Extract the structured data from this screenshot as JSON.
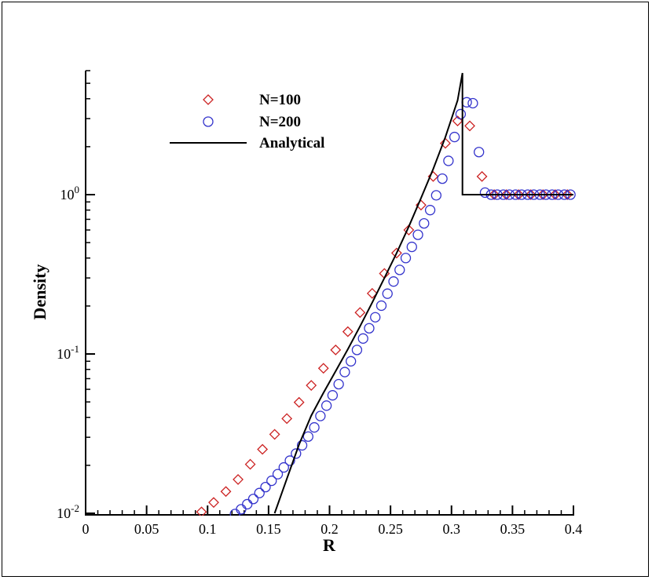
{
  "chart_data": {
    "type": "scatter",
    "xlabel": "R",
    "ylabel": "Density",
    "xlim": [
      0,
      0.4
    ],
    "ylim": [
      0.01,
      6
    ],
    "yscale": "log",
    "x_ticks": [
      "0",
      "0.05",
      "0.1",
      "0.15",
      "0.2",
      "0.25",
      "0.3",
      "0.35",
      "0.4"
    ],
    "y_ticks": [
      {
        "base": "10",
        "exp": "-2",
        "value": 0.01
      },
      {
        "base": "10",
        "exp": "-1",
        "value": 0.1
      },
      {
        "base": "10",
        "exp": "0",
        "value": 1
      }
    ],
    "grid": false,
    "legend_position": "top-left",
    "series": [
      {
        "name": "N=100",
        "marker": "diamond",
        "color": "#cc2222",
        "x": [
          0.095,
          0.105,
          0.115,
          0.125,
          0.135,
          0.145,
          0.155,
          0.165,
          0.175,
          0.185,
          0.195,
          0.205,
          0.215,
          0.225,
          0.235,
          0.245,
          0.255,
          0.265,
          0.275,
          0.285,
          0.295,
          0.305,
          0.315,
          0.325,
          0.335,
          0.345,
          0.355,
          0.365,
          0.375,
          0.385,
          0.395
        ],
        "y": [
          0.0102,
          0.0117,
          0.0137,
          0.0163,
          0.0203,
          0.0252,
          0.0313,
          0.0393,
          0.0497,
          0.0635,
          0.0813,
          0.106,
          0.138,
          0.182,
          0.24,
          0.32,
          0.43,
          0.6,
          0.86,
          1.3,
          2.1,
          2.9,
          2.7,
          1.3,
          1.0,
          1.0,
          1.0,
          1.0,
          1.0,
          1.0,
          1.0
        ]
      },
      {
        "name": "N=200",
        "marker": "circle",
        "color": "#3333cc",
        "x": [
          0.1225,
          0.1275,
          0.1325,
          0.1375,
          0.1425,
          0.1475,
          0.1525,
          0.1575,
          0.1625,
          0.1675,
          0.1725,
          0.1775,
          0.1825,
          0.1875,
          0.1925,
          0.1975,
          0.2025,
          0.2075,
          0.2125,
          0.2175,
          0.2225,
          0.2275,
          0.2325,
          0.2375,
          0.2425,
          0.2475,
          0.2525,
          0.2575,
          0.2625,
          0.2675,
          0.2725,
          0.2775,
          0.2825,
          0.2875,
          0.2925,
          0.2975,
          0.3025,
          0.3075,
          0.3125,
          0.3175,
          0.3225,
          0.3275,
          0.3325,
          0.3375,
          0.3425,
          0.3475,
          0.3525,
          0.3575,
          0.3625,
          0.3675,
          0.3725,
          0.3775,
          0.3825,
          0.3875,
          0.3925,
          0.3975
        ],
        "y": [
          0.0099,
          0.0106,
          0.0114,
          0.0123,
          0.0134,
          0.0146,
          0.016,
          0.0176,
          0.0194,
          0.0214,
          0.0237,
          0.0267,
          0.0303,
          0.0346,
          0.0408,
          0.0474,
          0.055,
          0.0646,
          0.077,
          0.09,
          0.106,
          0.125,
          0.145,
          0.17,
          0.201,
          0.239,
          0.285,
          0.337,
          0.4,
          0.47,
          0.56,
          0.66,
          0.8,
          0.99,
          1.26,
          1.63,
          2.3,
          3.2,
          3.8,
          3.75,
          1.85,
          1.03,
          1.0,
          1.0,
          1.0,
          1.0,
          1.0,
          1.0,
          1.0,
          1.0,
          1.0,
          1.0,
          1.0,
          1.0,
          1.0,
          1.0
        ]
      },
      {
        "name": "Analytical",
        "marker": "line",
        "color": "#000000",
        "x": [
          0.155,
          0.165,
          0.175,
          0.185,
          0.195,
          0.205,
          0.215,
          0.225,
          0.235,
          0.245,
          0.255,
          0.265,
          0.275,
          0.285,
          0.295,
          0.305,
          0.309,
          0.309,
          0.4
        ],
        "y": [
          0.01,
          0.0165,
          0.027,
          0.041,
          0.057,
          0.078,
          0.107,
          0.149,
          0.21,
          0.3,
          0.43,
          0.63,
          0.95,
          1.45,
          2.3,
          3.9,
          5.8,
          1.0,
          1.0
        ]
      }
    ]
  }
}
